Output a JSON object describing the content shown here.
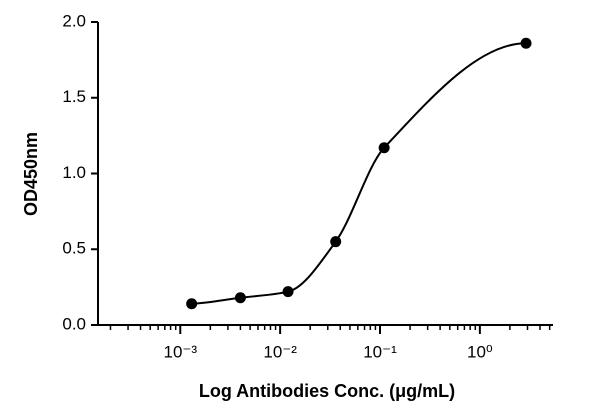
{
  "chart_data": {
    "type": "scatter",
    "xlabel": "Log Antibodies Conc. (μg/mL)",
    "ylabel": "OD450nm",
    "x_log_scale": true,
    "minor_ticks": true,
    "xlim": [
      0.00015,
      5.4
    ],
    "xticks": [
      {
        "value": 0.001,
        "label": "10⁻³"
      },
      {
        "value": 0.01,
        "label": "10⁻²"
      },
      {
        "value": 0.1,
        "label": "10⁻¹"
      },
      {
        "value": 1,
        "label": "10⁰"
      }
    ],
    "ylim": [
      0,
      2.0
    ],
    "yticks": [
      {
        "value": 0,
        "label": "0.0"
      },
      0.5,
      {
        "value": 1.0,
        "label": "1.0"
      },
      1.5,
      {
        "value": 2.0,
        "label": "2.0"
      }
    ],
    "fit_curve": true,
    "series": [
      {
        "color": "#000000",
        "x": [
          0.0013,
          0.004,
          0.012,
          0.036,
          0.11,
          2.9
        ],
        "values": [
          0.14,
          0.18,
          0.22,
          0.55,
          1.17,
          1.86
        ]
      }
    ]
  }
}
